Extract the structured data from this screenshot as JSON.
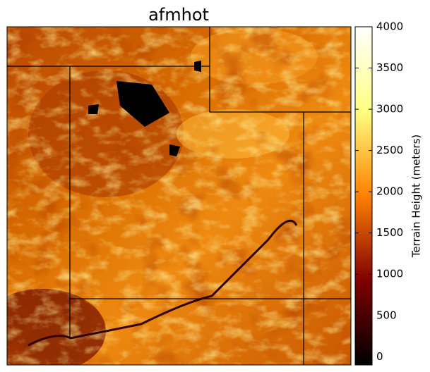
{
  "title": "afmhot",
  "colorbar": {
    "label": "Terrain Height (meters)",
    "lim": [
      -100,
      4000
    ],
    "ticks": [
      0,
      500,
      1000,
      1500,
      2000,
      2500,
      3000,
      3500,
      4000
    ],
    "colors": [
      "#000000",
      "#800000",
      "#ff8000",
      "#ffff80",
      "#ffffff"
    ]
  }
}
